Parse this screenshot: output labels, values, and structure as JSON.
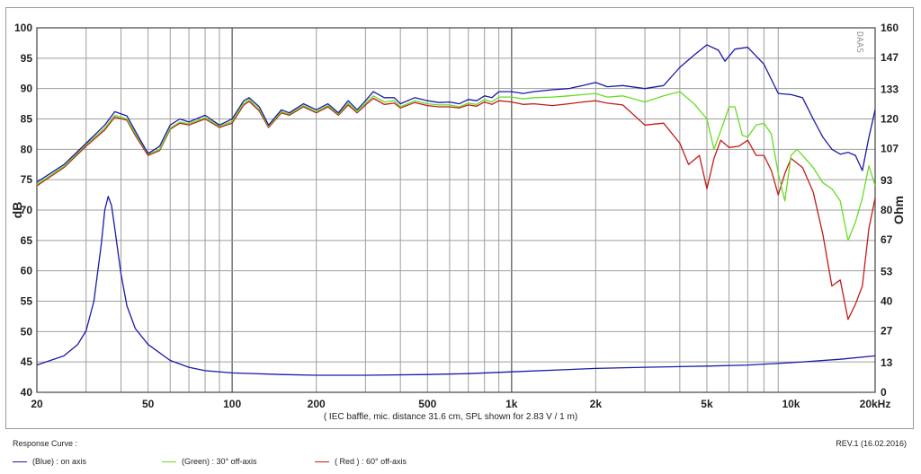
{
  "footer": {
    "section_label": "Response Curve :",
    "revision": "REV.1 (16.02.2016)"
  },
  "legend": [
    {
      "label": "(Blue) : on axis",
      "color": "#1a1aa8"
    },
    {
      "label": "(Green) : 30° off-axis",
      "color": "#66dd22"
    },
    {
      "label": "( Red ) : 60° off-axis",
      "color": "#c41a1a"
    }
  ],
  "chart_data": {
    "type": "line",
    "caption": "( IEC baffle, mic. distance 31.6 cm, SPL shown for 2.83 V / 1 m)",
    "watermark": "DAAS",
    "xlabel": "",
    "ylabel": "dB",
    "y2label": "Ohm",
    "xscale": "log",
    "xlim": [
      20,
      20000
    ],
    "ylim": [
      40,
      100
    ],
    "y2lim": [
      0,
      160
    ],
    "grid": true,
    "x_tick_labels": [
      {
        "value": 20,
        "label": "20"
      },
      {
        "value": 50,
        "label": "50"
      },
      {
        "value": 100,
        "label": "100"
      },
      {
        "value": 200,
        "label": "200"
      },
      {
        "value": 500,
        "label": "500"
      },
      {
        "value": 1000,
        "label": "1k"
      },
      {
        "value": 2000,
        "label": "2k"
      },
      {
        "value": 5000,
        "label": "5k"
      },
      {
        "value": 10000,
        "label": "10k"
      },
      {
        "value": 20000,
        "label": "20kHz"
      }
    ],
    "y_ticks": [
      100,
      95,
      90,
      85,
      80,
      75,
      70,
      65,
      60,
      55,
      50,
      45,
      40
    ],
    "y2_ticks": [
      160,
      147,
      133,
      120,
      107,
      93,
      80,
      67,
      53,
      40,
      27,
      13,
      0
    ],
    "series": [
      {
        "name": "(Blue) : on axis",
        "color": "#1a1aa8",
        "axis": "left",
        "points": [
          [
            20,
            74.6
          ],
          [
            25,
            77.5
          ],
          [
            30,
            81
          ],
          [
            35,
            84
          ],
          [
            38,
            86.2
          ],
          [
            42,
            85.5
          ],
          [
            45,
            83
          ],
          [
            50,
            79.3
          ],
          [
            55,
            80.5
          ],
          [
            60,
            84
          ],
          [
            65,
            85
          ],
          [
            70,
            84.5
          ],
          [
            80,
            85.6
          ],
          [
            90,
            84
          ],
          [
            100,
            85
          ],
          [
            110,
            88
          ],
          [
            115,
            88.5
          ],
          [
            125,
            87
          ],
          [
            135,
            84
          ],
          [
            150,
            86.5
          ],
          [
            160,
            86
          ],
          [
            180,
            87.5
          ],
          [
            200,
            86.5
          ],
          [
            220,
            87.5
          ],
          [
            240,
            86
          ],
          [
            260,
            88
          ],
          [
            280,
            86.5
          ],
          [
            300,
            88
          ],
          [
            320,
            89.5
          ],
          [
            350,
            88.5
          ],
          [
            380,
            88.5
          ],
          [
            400,
            87.5
          ],
          [
            450,
            88.5
          ],
          [
            500,
            88
          ],
          [
            550,
            87.7
          ],
          [
            600,
            87.8
          ],
          [
            650,
            87.5
          ],
          [
            700,
            88.2
          ],
          [
            750,
            88
          ],
          [
            800,
            88.8
          ],
          [
            850,
            88.5
          ],
          [
            900,
            89.5
          ],
          [
            1000,
            89.5
          ],
          [
            1100,
            89.2
          ],
          [
            1200,
            89.5
          ],
          [
            1400,
            89.8
          ],
          [
            1600,
            90
          ],
          [
            1800,
            90.5
          ],
          [
            2000,
            91
          ],
          [
            2200,
            90.3
          ],
          [
            2500,
            90.5
          ],
          [
            3000,
            90
          ],
          [
            3500,
            90.5
          ],
          [
            4000,
            93.5
          ],
          [
            4500,
            95.5
          ],
          [
            5000,
            97.2
          ],
          [
            5500,
            96.3
          ],
          [
            5800,
            94.5
          ],
          [
            6300,
            96.5
          ],
          [
            7000,
            96.8
          ],
          [
            8000,
            94
          ],
          [
            9000,
            89.2
          ],
          [
            10000,
            89
          ],
          [
            11000,
            88.5
          ],
          [
            12000,
            85
          ],
          [
            13000,
            82
          ],
          [
            14000,
            80
          ],
          [
            15000,
            79.2
          ],
          [
            16000,
            79.5
          ],
          [
            17000,
            79
          ],
          [
            18000,
            76.5
          ],
          [
            19000,
            82
          ],
          [
            20000,
            86.5
          ]
        ]
      },
      {
        "name": "(Green) : 30° off-axis",
        "color": "#66dd22",
        "axis": "left",
        "points": [
          [
            20,
            74.2
          ],
          [
            25,
            77.2
          ],
          [
            30,
            80.8
          ],
          [
            35,
            83.5
          ],
          [
            38,
            85.6
          ],
          [
            42,
            85
          ],
          [
            45,
            82.6
          ],
          [
            50,
            79.2
          ],
          [
            55,
            80
          ],
          [
            60,
            83.5
          ],
          [
            65,
            84.5
          ],
          [
            70,
            84.2
          ],
          [
            80,
            85.2
          ],
          [
            90,
            83.8
          ],
          [
            100,
            84.6
          ],
          [
            110,
            87.6
          ],
          [
            115,
            88.2
          ],
          [
            125,
            86.6
          ],
          [
            135,
            83.8
          ],
          [
            150,
            86.2
          ],
          [
            160,
            85.8
          ],
          [
            180,
            87.2
          ],
          [
            200,
            86.2
          ],
          [
            220,
            87.2
          ],
          [
            240,
            85.8
          ],
          [
            260,
            87.6
          ],
          [
            280,
            86.2
          ],
          [
            300,
            87.6
          ],
          [
            320,
            88.8
          ],
          [
            350,
            87.8
          ],
          [
            380,
            88
          ],
          [
            400,
            87
          ],
          [
            450,
            88
          ],
          [
            500,
            87.5
          ],
          [
            550,
            87.3
          ],
          [
            600,
            87.3
          ],
          [
            650,
            87
          ],
          [
            700,
            87.6
          ],
          [
            750,
            87.4
          ],
          [
            800,
            88.2
          ],
          [
            850,
            87.8
          ],
          [
            900,
            88.6
          ],
          [
            1000,
            88.6
          ],
          [
            1100,
            88.3
          ],
          [
            1200,
            88.5
          ],
          [
            1400,
            88.6
          ],
          [
            1600,
            88.8
          ],
          [
            1800,
            89
          ],
          [
            2000,
            89.2
          ],
          [
            2200,
            88.6
          ],
          [
            2500,
            88.8
          ],
          [
            3000,
            87.8
          ],
          [
            3500,
            88.8
          ],
          [
            4000,
            89.5
          ],
          [
            4500,
            87.5
          ],
          [
            5000,
            85
          ],
          [
            5300,
            80
          ],
          [
            5700,
            84
          ],
          [
            6000,
            87
          ],
          [
            6300,
            87
          ],
          [
            6700,
            82.3
          ],
          [
            7000,
            82
          ],
          [
            7500,
            84
          ],
          [
            8000,
            84.3
          ],
          [
            8500,
            82.5
          ],
          [
            9000,
            76
          ],
          [
            9500,
            71.5
          ],
          [
            10000,
            79
          ],
          [
            10500,
            80
          ],
          [
            11000,
            79
          ],
          [
            12000,
            77
          ],
          [
            13000,
            74.5
          ],
          [
            14000,
            73.5
          ],
          [
            15000,
            71.5
          ],
          [
            16000,
            65
          ],
          [
            17000,
            68
          ],
          [
            18000,
            72
          ],
          [
            19000,
            77.3
          ],
          [
            20000,
            74
          ]
        ]
      },
      {
        "name": "( Red ) : 60° off-axis",
        "color": "#c41a1a",
        "axis": "left",
        "points": [
          [
            20,
            74
          ],
          [
            25,
            77
          ],
          [
            30,
            80.5
          ],
          [
            35,
            83.2
          ],
          [
            38,
            85.3
          ],
          [
            42,
            84.8
          ],
          [
            45,
            82.3
          ],
          [
            50,
            79
          ],
          [
            55,
            79.8
          ],
          [
            60,
            83.3
          ],
          [
            65,
            84.3
          ],
          [
            70,
            84
          ],
          [
            80,
            85
          ],
          [
            90,
            83.6
          ],
          [
            100,
            84.3
          ],
          [
            110,
            87.3
          ],
          [
            115,
            87.9
          ],
          [
            125,
            86.3
          ],
          [
            135,
            83.6
          ],
          [
            150,
            86
          ],
          [
            160,
            85.6
          ],
          [
            180,
            87
          ],
          [
            200,
            86
          ],
          [
            220,
            87
          ],
          [
            240,
            85.6
          ],
          [
            260,
            87.3
          ],
          [
            280,
            86
          ],
          [
            300,
            87.3
          ],
          [
            320,
            88.4
          ],
          [
            350,
            87.4
          ],
          [
            380,
            87.6
          ],
          [
            400,
            86.8
          ],
          [
            450,
            87.7
          ],
          [
            500,
            87.2
          ],
          [
            550,
            87
          ],
          [
            600,
            87
          ],
          [
            650,
            86.8
          ],
          [
            700,
            87.3
          ],
          [
            750,
            87.1
          ],
          [
            800,
            87.8
          ],
          [
            850,
            87.4
          ],
          [
            900,
            88
          ],
          [
            1000,
            87.8
          ],
          [
            1100,
            87.4
          ],
          [
            1200,
            87.5
          ],
          [
            1400,
            87.2
          ],
          [
            1600,
            87.5
          ],
          [
            1800,
            87.8
          ],
          [
            2000,
            88
          ],
          [
            2200,
            87.6
          ],
          [
            2500,
            87.3
          ],
          [
            3000,
            84
          ],
          [
            3500,
            84.3
          ],
          [
            4000,
            81
          ],
          [
            4300,
            77.5
          ],
          [
            4700,
            79
          ],
          [
            5000,
            73.5
          ],
          [
            5300,
            78.5
          ],
          [
            5600,
            81.5
          ],
          [
            6000,
            80.3
          ],
          [
            6500,
            80.5
          ],
          [
            7000,
            81.5
          ],
          [
            7500,
            79
          ],
          [
            8000,
            79
          ],
          [
            8500,
            76.5
          ],
          [
            9000,
            72.5
          ],
          [
            9500,
            76
          ],
          [
            10000,
            78.5
          ],
          [
            11000,
            77
          ],
          [
            12000,
            73
          ],
          [
            13000,
            66
          ],
          [
            14000,
            57.5
          ],
          [
            15000,
            58.5
          ],
          [
            16000,
            52
          ],
          [
            17000,
            54.5
          ],
          [
            18000,
            57.5
          ],
          [
            19000,
            67
          ],
          [
            20000,
            72
          ]
        ]
      },
      {
        "name": "Impedance",
        "color": "#1a1aa8",
        "axis": "right",
        "points": [
          [
            20,
            12
          ],
          [
            25,
            16
          ],
          [
            28,
            21
          ],
          [
            30,
            27
          ],
          [
            32,
            40
          ],
          [
            34,
            65
          ],
          [
            35,
            80
          ],
          [
            36,
            86
          ],
          [
            37,
            82
          ],
          [
            38,
            72
          ],
          [
            40,
            52
          ],
          [
            42,
            38
          ],
          [
            45,
            28
          ],
          [
            50,
            21
          ],
          [
            60,
            14
          ],
          [
            70,
            11
          ],
          [
            80,
            9.5
          ],
          [
            100,
            8.5
          ],
          [
            150,
            7.8
          ],
          [
            200,
            7.5
          ],
          [
            300,
            7.5
          ],
          [
            500,
            7.8
          ],
          [
            700,
            8.2
          ],
          [
            1000,
            9
          ],
          [
            2000,
            10.5
          ],
          [
            3000,
            11
          ],
          [
            5000,
            11.5
          ],
          [
            7000,
            12
          ],
          [
            10000,
            13
          ],
          [
            15000,
            14.5
          ],
          [
            20000,
            16
          ]
        ]
      }
    ]
  }
}
